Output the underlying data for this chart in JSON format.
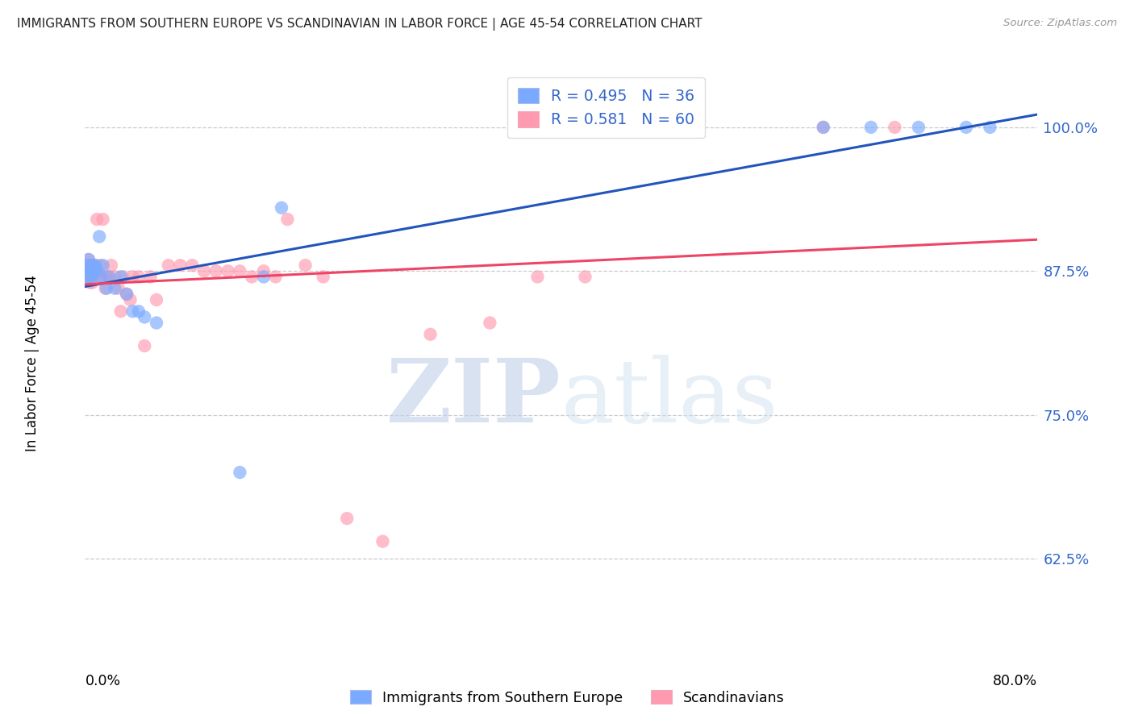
{
  "title": "IMMIGRANTS FROM SOUTHERN EUROPE VS SCANDINAVIAN IN LABOR FORCE | AGE 45-54 CORRELATION CHART",
  "source": "Source: ZipAtlas.com",
  "ylabel": "In Labor Force | Age 45-54",
  "ylabel_right_ticks": [
    0.625,
    0.75,
    0.875,
    1.0
  ],
  "ylabel_right_labels": [
    "62.5%",
    "75.0%",
    "87.5%",
    "100.0%"
  ],
  "x_min": 0.0,
  "x_max": 0.8,
  "y_min": 0.545,
  "y_max": 1.045,
  "blue_color": "#7AAAFF",
  "pink_color": "#FF9AB0",
  "blue_line_color": "#2255BB",
  "pink_line_color": "#EE4466",
  "background_color": "#ffffff",
  "grid_color": "#cccccc",
  "blue_x": [
    0.001,
    0.001,
    0.002,
    0.002,
    0.003,
    0.003,
    0.004,
    0.004,
    0.005,
    0.005,
    0.006,
    0.006,
    0.007,
    0.008,
    0.009,
    0.01,
    0.012,
    0.013,
    0.015,
    0.018,
    0.02,
    0.025,
    0.03,
    0.035,
    0.04,
    0.045,
    0.05,
    0.06,
    0.13,
    0.15,
    0.165,
    0.62,
    0.66,
    0.7,
    0.74,
    0.76
  ],
  "blue_y": [
    0.875,
    0.88,
    0.875,
    0.87,
    0.885,
    0.875,
    0.875,
    0.87,
    0.88,
    0.875,
    0.875,
    0.87,
    0.88,
    0.875,
    0.88,
    0.875,
    0.905,
    0.87,
    0.88,
    0.86,
    0.87,
    0.86,
    0.87,
    0.855,
    0.84,
    0.84,
    0.835,
    0.83,
    0.7,
    0.87,
    0.93,
    1.0,
    1.0,
    1.0,
    1.0,
    1.0
  ],
  "pink_x": [
    0.001,
    0.002,
    0.002,
    0.003,
    0.003,
    0.004,
    0.004,
    0.005,
    0.005,
    0.006,
    0.006,
    0.007,
    0.007,
    0.008,
    0.008,
    0.009,
    0.01,
    0.01,
    0.011,
    0.012,
    0.013,
    0.014,
    0.015,
    0.016,
    0.017,
    0.018,
    0.02,
    0.022,
    0.025,
    0.028,
    0.03,
    0.032,
    0.035,
    0.038,
    0.04,
    0.045,
    0.05,
    0.055,
    0.06,
    0.07,
    0.08,
    0.09,
    0.1,
    0.11,
    0.12,
    0.13,
    0.14,
    0.15,
    0.16,
    0.17,
    0.185,
    0.2,
    0.22,
    0.25,
    0.29,
    0.34,
    0.38,
    0.42,
    0.62,
    0.68
  ],
  "pink_y": [
    0.875,
    0.88,
    0.87,
    0.885,
    0.87,
    0.875,
    0.865,
    0.88,
    0.87,
    0.88,
    0.865,
    0.875,
    0.875,
    0.88,
    0.875,
    0.875,
    0.92,
    0.87,
    0.875,
    0.87,
    0.88,
    0.87,
    0.92,
    0.87,
    0.86,
    0.87,
    0.87,
    0.88,
    0.87,
    0.86,
    0.84,
    0.87,
    0.855,
    0.85,
    0.87,
    0.87,
    0.81,
    0.87,
    0.85,
    0.88,
    0.88,
    0.88,
    0.875,
    0.875,
    0.875,
    0.875,
    0.87,
    0.875,
    0.87,
    0.92,
    0.88,
    0.87,
    0.66,
    0.64,
    0.82,
    0.83,
    0.87,
    0.87,
    1.0,
    1.0
  ]
}
